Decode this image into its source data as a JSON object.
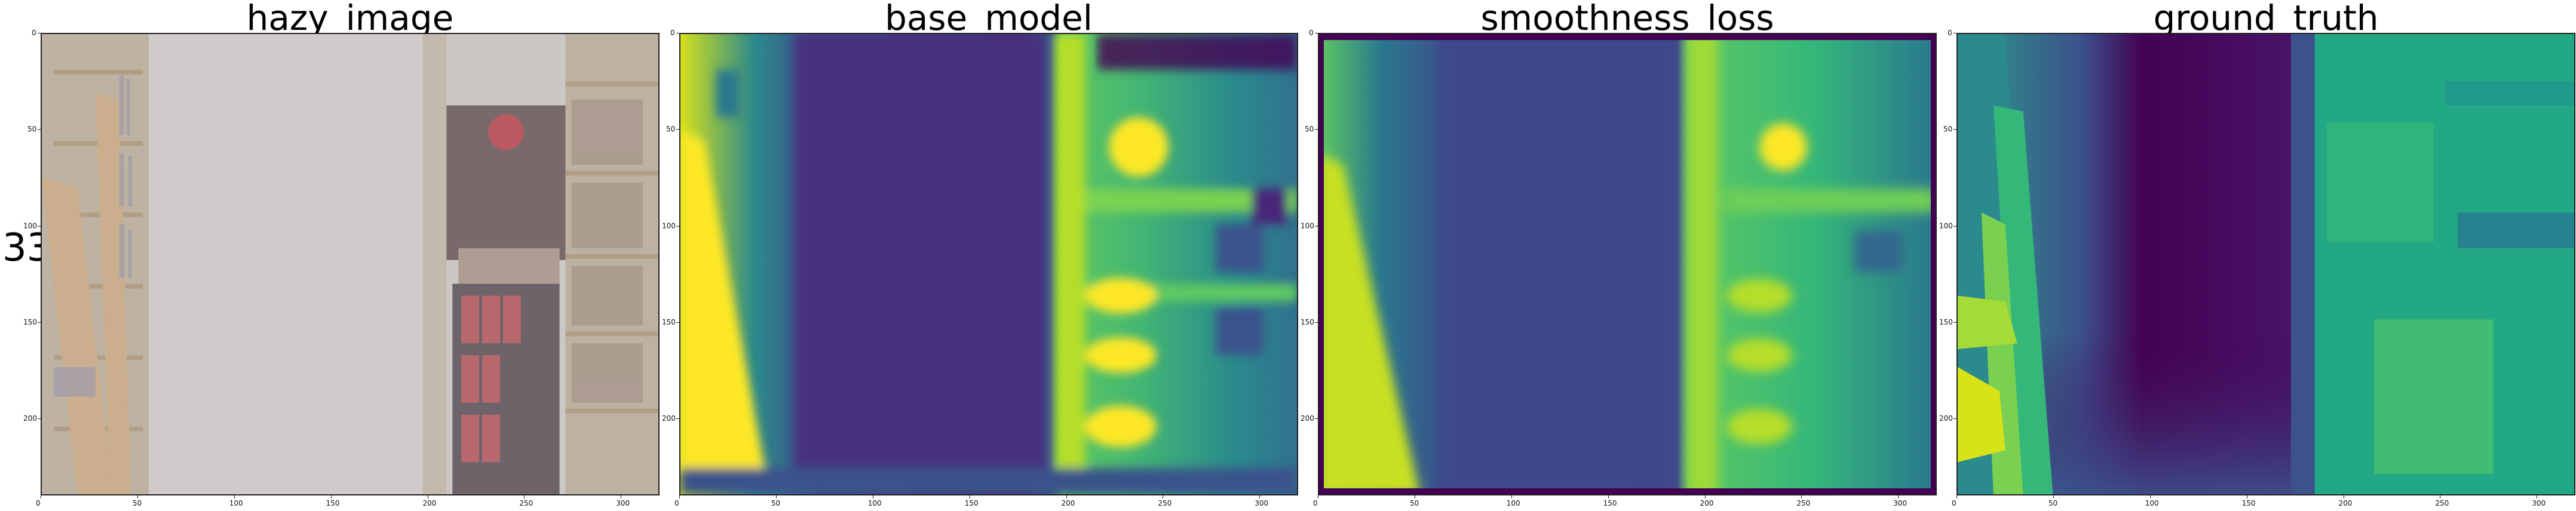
{
  "row_label": "33",
  "panels": [
    {
      "id": "hazy_image",
      "title": "hazy_image",
      "kind": "photo"
    },
    {
      "id": "base_model",
      "title": "base_model",
      "kind": "depth-prediction"
    },
    {
      "id": "smoothness_loss",
      "title": "smoothness_loss",
      "kind": "depth-prediction"
    },
    {
      "id": "ground_truth",
      "title": "ground_truth",
      "kind": "depth-map"
    }
  ],
  "x_ticks": [
    "0",
    "50",
    "100",
    "150",
    "200",
    "250",
    "300"
  ],
  "y_ticks": [
    "0",
    "50",
    "100",
    "150",
    "200"
  ],
  "colormap": [
    "#440154",
    "#3b528b",
    "#21918c",
    "#5ec962",
    "#fde725"
  ]
}
